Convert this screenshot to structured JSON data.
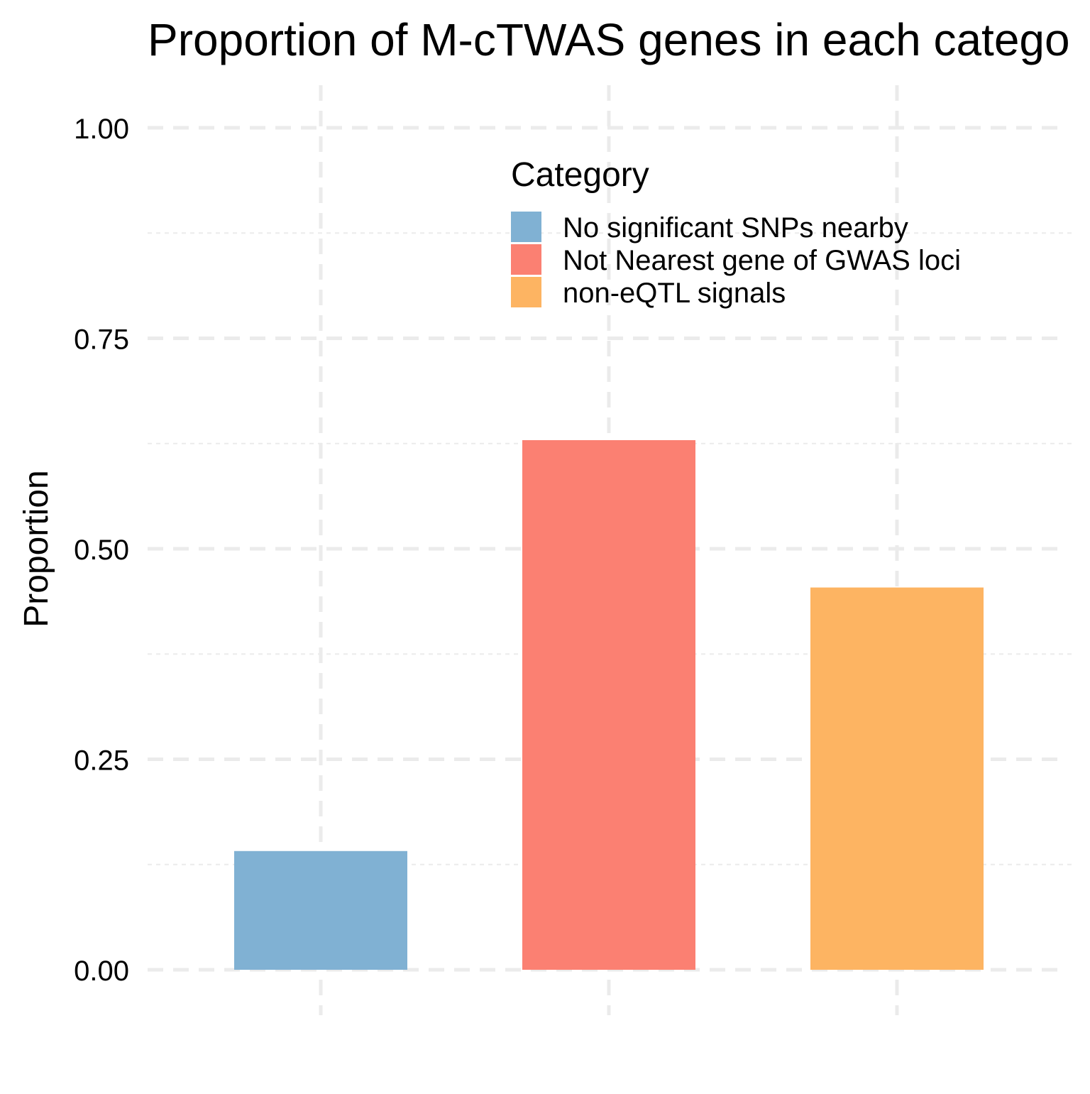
{
  "chart_data": {
    "type": "bar",
    "title": "Proportion of M-cTWAS genes in each catego",
    "xlabel": "",
    "ylabel": "Proportion",
    "ylim": [
      -0.125,
      1.05
    ],
    "yticks": [
      "0.00",
      "0.25",
      "0.50",
      "0.75",
      "1.00"
    ],
    "grid": true,
    "legend": {
      "title": "Category",
      "placement": "top-right"
    },
    "categories": [
      "No significant SNPs nearby",
      "Not Nearest gene of GWAS loci",
      "non-eQTL signals"
    ],
    "values": [
      0.141,
      0.629,
      0.454
    ],
    "colors": [
      "#80B1D3",
      "#FB8072",
      "#FDB462"
    ]
  }
}
